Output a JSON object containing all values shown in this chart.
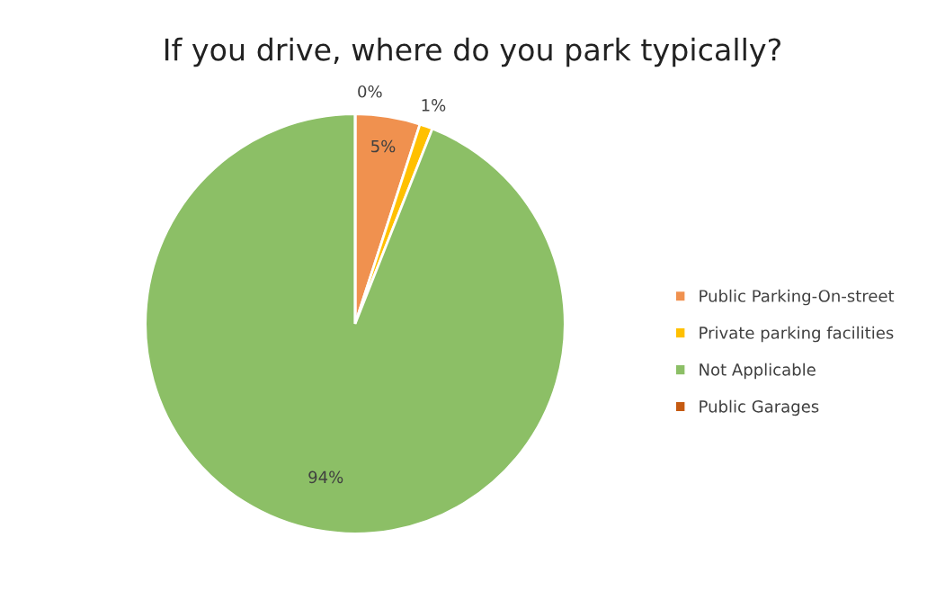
{
  "chart_data": {
    "type": "pie",
    "title": "If you drive, where do you park typically?",
    "categories": [
      "Public Parking-On-street",
      "Private parking facilities",
      "Not Applicable",
      "Public Garages"
    ],
    "values": [
      5,
      1,
      94,
      0
    ],
    "colors": [
      "#f0914f",
      "#ffc000",
      "#8cbf66",
      "#c55a11"
    ],
    "value_labels": [
      "5%",
      "1%",
      "94%",
      "0%"
    ],
    "legend": "right"
  }
}
